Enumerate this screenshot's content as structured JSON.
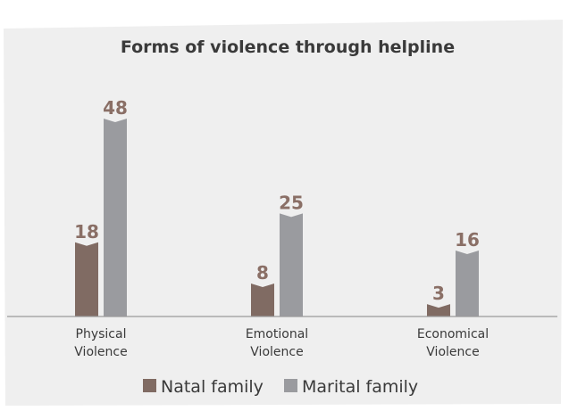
{
  "chart_data": {
    "type": "bar",
    "title": "Forms of violence through helpline",
    "categories": [
      [
        "Physical",
        "Violence"
      ],
      [
        "Emotional",
        "Violence"
      ],
      [
        "Economical",
        "Violence"
      ]
    ],
    "series": [
      {
        "name": "Natal family",
        "values": [
          18,
          8,
          3
        ],
        "color": "#806b63"
      },
      {
        "name": "Marital family",
        "values": [
          48,
          25,
          16
        ],
        "color": "#9a9b9f"
      }
    ],
    "ylim": [
      0,
      60
    ],
    "grid": false,
    "legend": "bottom-center",
    "background_color": "#efefef",
    "label_color": "#8a6f66"
  }
}
